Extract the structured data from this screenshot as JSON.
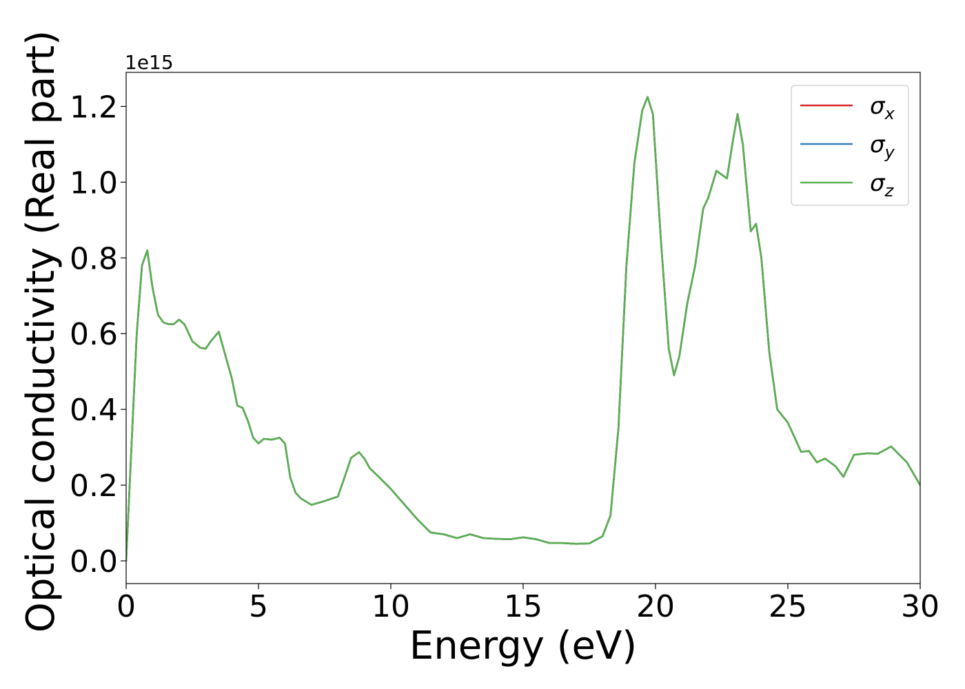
{
  "chart_data": {
    "type": "line",
    "xlabel": "Energy (eV)",
    "ylabel": "Optical conductivity (Real part)",
    "y_offset_label": "1e15",
    "xlim": [
      0,
      30
    ],
    "ylim": [
      -0.06,
      1.29
    ],
    "xticks": [
      "0",
      "5",
      "10",
      "15",
      "20",
      "25",
      "30"
    ],
    "yticks": [
      "0.0",
      "0.2",
      "0.4",
      "0.6",
      "0.8",
      "1.0",
      "1.2"
    ],
    "legend_position": "upper-right",
    "series": [
      {
        "name": "σx",
        "symbol": "σ",
        "subscript": "x",
        "color": "#d62728",
        "x": [
          0,
          0.2,
          0.4,
          0.6,
          0.8,
          1.0,
          1.2,
          1.4,
          1.6,
          1.8,
          2.0,
          2.2,
          2.5,
          2.8,
          3.0,
          3.2,
          3.5,
          3.8,
          4.0,
          4.2,
          4.4,
          4.6,
          4.8,
          5.0,
          5.2,
          5.5,
          5.8,
          6.0,
          6.2,
          6.4,
          6.6,
          7.0,
          7.2,
          7.5,
          8.0,
          8.2,
          8.5,
          8.8,
          9.0,
          9.2,
          9.5,
          10.0,
          10.5,
          11.0,
          11.5,
          12.0,
          12.5,
          13.0,
          13.5,
          14.0,
          14.5,
          15.0,
          15.5,
          16.0,
          16.5,
          17.0,
          17.5,
          18.0,
          18.3,
          18.6,
          18.9,
          19.2,
          19.5,
          19.7,
          19.9,
          20.2,
          20.5,
          20.7,
          20.9,
          21.2,
          21.5,
          21.8,
          22.0,
          22.3,
          22.5,
          22.7,
          22.9,
          23.1,
          23.3,
          23.6,
          23.8,
          24.0,
          24.3,
          24.6,
          25.0,
          25.5,
          25.8,
          26.1,
          26.4,
          26.8,
          27.1,
          27.5,
          28.0,
          28.4,
          28.9,
          29.5,
          30.0
        ],
        "y": [
          0.0,
          0.3,
          0.6,
          0.78,
          0.82,
          0.72,
          0.65,
          0.63,
          0.625,
          0.625,
          0.637,
          0.625,
          0.58,
          0.563,
          0.56,
          0.58,
          0.605,
          0.53,
          0.48,
          0.41,
          0.404,
          0.37,
          0.325,
          0.31,
          0.322,
          0.32,
          0.325,
          0.31,
          0.22,
          0.18,
          0.165,
          0.148,
          0.152,
          0.158,
          0.17,
          0.21,
          0.272,
          0.287,
          0.27,
          0.245,
          0.225,
          0.19,
          0.15,
          0.11,
          0.075,
          0.07,
          0.06,
          0.07,
          0.06,
          0.058,
          0.057,
          0.062,
          0.057,
          0.047,
          0.047,
          0.045,
          0.046,
          0.065,
          0.12,
          0.35,
          0.78,
          1.05,
          1.19,
          1.225,
          1.18,
          0.85,
          0.56,
          0.49,
          0.54,
          0.68,
          0.78,
          0.93,
          0.96,
          1.03,
          1.02,
          1.01,
          1.1,
          1.18,
          1.1,
          0.87,
          0.89,
          0.8,
          0.55,
          0.4,
          0.365,
          0.288,
          0.29,
          0.26,
          0.27,
          0.25,
          0.222,
          0.28,
          0.284,
          0.283,
          0.302,
          0.26,
          0.2
        ]
      },
      {
        "name": "σy",
        "symbol": "σ",
        "subscript": "y",
        "color": "#3a7fb8",
        "x": [
          0,
          0.2,
          0.4,
          0.6,
          0.8,
          1.0,
          1.2,
          1.4,
          1.6,
          1.8,
          2.0,
          2.2,
          2.5,
          2.8,
          3.0,
          3.2,
          3.5,
          3.8,
          4.0,
          4.2,
          4.4,
          4.6,
          4.8,
          5.0,
          5.2,
          5.5,
          5.8,
          6.0,
          6.2,
          6.4,
          6.6,
          7.0,
          7.2,
          7.5,
          8.0,
          8.2,
          8.5,
          8.8,
          9.0,
          9.2,
          9.5,
          10.0,
          10.5,
          11.0,
          11.5,
          12.0,
          12.5,
          13.0,
          13.5,
          14.0,
          14.5,
          15.0,
          15.5,
          16.0,
          16.5,
          17.0,
          17.5,
          18.0,
          18.3,
          18.6,
          18.9,
          19.2,
          19.5,
          19.7,
          19.9,
          20.2,
          20.5,
          20.7,
          20.9,
          21.2,
          21.5,
          21.8,
          22.0,
          22.3,
          22.5,
          22.7,
          22.9,
          23.1,
          23.3,
          23.6,
          23.8,
          24.0,
          24.3,
          24.6,
          25.0,
          25.5,
          25.8,
          26.1,
          26.4,
          26.8,
          27.1,
          27.5,
          28.0,
          28.4,
          28.9,
          29.5,
          30.0
        ],
        "y": [
          0.0,
          0.3,
          0.6,
          0.78,
          0.82,
          0.72,
          0.65,
          0.63,
          0.625,
          0.625,
          0.637,
          0.625,
          0.58,
          0.563,
          0.56,
          0.58,
          0.605,
          0.53,
          0.48,
          0.41,
          0.404,
          0.37,
          0.325,
          0.31,
          0.322,
          0.32,
          0.325,
          0.31,
          0.22,
          0.18,
          0.165,
          0.148,
          0.152,
          0.158,
          0.17,
          0.21,
          0.272,
          0.287,
          0.27,
          0.245,
          0.225,
          0.19,
          0.15,
          0.11,
          0.075,
          0.07,
          0.06,
          0.07,
          0.06,
          0.058,
          0.057,
          0.062,
          0.057,
          0.047,
          0.047,
          0.045,
          0.046,
          0.065,
          0.12,
          0.35,
          0.78,
          1.05,
          1.19,
          1.225,
          1.18,
          0.85,
          0.56,
          0.49,
          0.54,
          0.68,
          0.78,
          0.93,
          0.96,
          1.03,
          1.02,
          1.01,
          1.1,
          1.18,
          1.1,
          0.87,
          0.89,
          0.8,
          0.55,
          0.4,
          0.365,
          0.288,
          0.29,
          0.26,
          0.27,
          0.25,
          0.222,
          0.28,
          0.284,
          0.283,
          0.302,
          0.26,
          0.2
        ]
      },
      {
        "name": "σz",
        "symbol": "σ",
        "subscript": "z",
        "color": "#5aaf50",
        "x": [
          0,
          0.2,
          0.4,
          0.6,
          0.8,
          1.0,
          1.2,
          1.4,
          1.6,
          1.8,
          2.0,
          2.2,
          2.5,
          2.8,
          3.0,
          3.2,
          3.5,
          3.8,
          4.0,
          4.2,
          4.4,
          4.6,
          4.8,
          5.0,
          5.2,
          5.5,
          5.8,
          6.0,
          6.2,
          6.4,
          6.6,
          7.0,
          7.2,
          7.5,
          8.0,
          8.2,
          8.5,
          8.8,
          9.0,
          9.2,
          9.5,
          10.0,
          10.5,
          11.0,
          11.5,
          12.0,
          12.5,
          13.0,
          13.5,
          14.0,
          14.5,
          15.0,
          15.5,
          16.0,
          16.5,
          17.0,
          17.5,
          18.0,
          18.3,
          18.6,
          18.9,
          19.2,
          19.5,
          19.7,
          19.9,
          20.2,
          20.5,
          20.7,
          20.9,
          21.2,
          21.5,
          21.8,
          22.0,
          22.3,
          22.5,
          22.7,
          22.9,
          23.1,
          23.3,
          23.6,
          23.8,
          24.0,
          24.3,
          24.6,
          25.0,
          25.5,
          25.8,
          26.1,
          26.4,
          26.8,
          27.1,
          27.5,
          28.0,
          28.4,
          28.9,
          29.5,
          30.0
        ],
        "y": [
          0.0,
          0.3,
          0.6,
          0.78,
          0.82,
          0.72,
          0.65,
          0.63,
          0.625,
          0.625,
          0.637,
          0.625,
          0.58,
          0.563,
          0.56,
          0.58,
          0.605,
          0.53,
          0.48,
          0.41,
          0.404,
          0.37,
          0.325,
          0.31,
          0.322,
          0.32,
          0.325,
          0.31,
          0.22,
          0.18,
          0.165,
          0.148,
          0.152,
          0.158,
          0.17,
          0.21,
          0.272,
          0.287,
          0.27,
          0.245,
          0.225,
          0.19,
          0.15,
          0.11,
          0.075,
          0.07,
          0.06,
          0.07,
          0.06,
          0.058,
          0.057,
          0.062,
          0.057,
          0.047,
          0.047,
          0.045,
          0.046,
          0.065,
          0.12,
          0.35,
          0.78,
          1.05,
          1.19,
          1.225,
          1.18,
          0.85,
          0.56,
          0.49,
          0.54,
          0.68,
          0.78,
          0.93,
          0.96,
          1.03,
          1.02,
          1.01,
          1.1,
          1.18,
          1.1,
          0.87,
          0.89,
          0.8,
          0.55,
          0.4,
          0.365,
          0.288,
          0.29,
          0.26,
          0.27,
          0.25,
          0.222,
          0.28,
          0.284,
          0.283,
          0.302,
          0.26,
          0.2
        ]
      }
    ]
  }
}
